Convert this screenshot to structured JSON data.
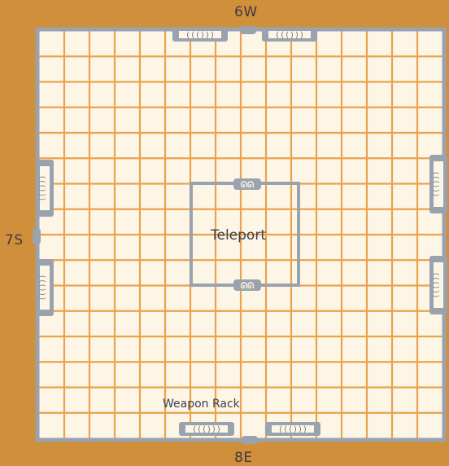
{
  "map": {
    "exits": {
      "north": "6W",
      "south": "8E",
      "west": "7S"
    },
    "labels": {
      "teleport": "Teleport",
      "weapon_rack": "Weapon Rack"
    },
    "grid": {
      "columns": 16,
      "rows": 16
    },
    "colors": {
      "background": "#d08f3a",
      "floor": "#fdf6e6",
      "grid_line": "#eaa24c",
      "wall": "#9aa3ad",
      "text": "#3f3a44"
    },
    "icons": [
      "door-icon",
      "teleport-pad-icon"
    ]
  }
}
